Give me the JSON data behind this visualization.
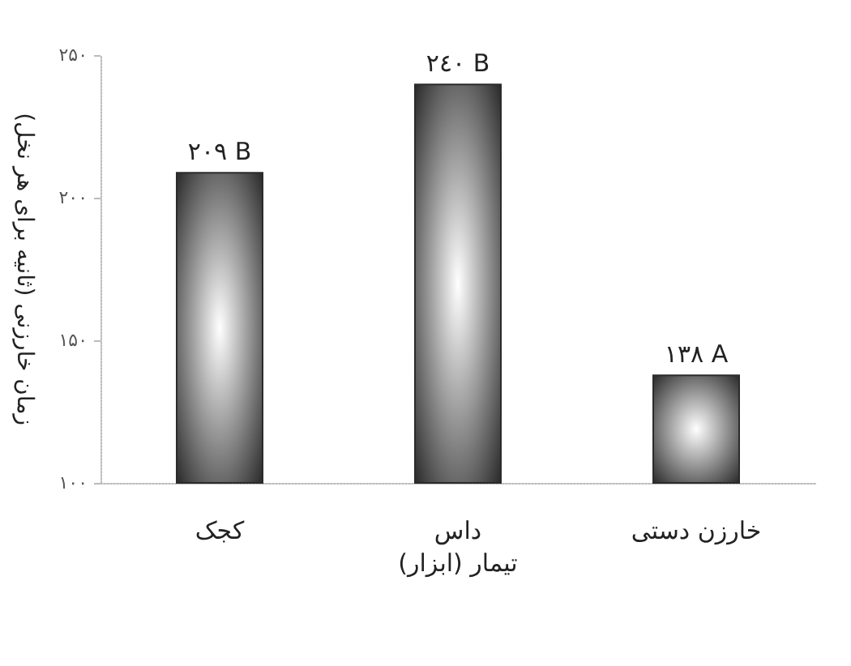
{
  "chart_data": {
    "type": "bar",
    "xlabel": "تیمار (ابزار)",
    "ylabel": "زمان خارزنی (ثانیه برای هر نخل)",
    "categories": [
      "کجک",
      "داس",
      "خارزن دستی"
    ],
    "values": [
      209,
      240,
      138
    ],
    "value_labels": [
      "۲۰۹ B",
      "۲٤۰ B",
      "۱۳۸ A"
    ],
    "color": "#2b2b2b",
    "ylim": [
      100,
      250
    ],
    "yticks": [
      {
        "value": 100,
        "label": "۱۰۰"
      },
      {
        "value": 150,
        "label": "۱۵۰"
      },
      {
        "value": 200,
        "label": "۲۰۰"
      },
      {
        "value": 250,
        "label": "۲۵۰"
      }
    ],
    "grid": false
  }
}
